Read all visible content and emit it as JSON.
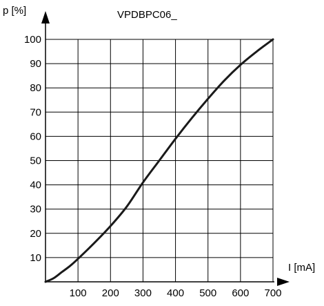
{
  "chart_data": {
    "type": "line",
    "title": "VPDBPC06_",
    "xlabel": "I [mA]",
    "ylabel": "p [%]",
    "xlim": [
      0,
      700
    ],
    "ylim": [
      0,
      100
    ],
    "xticks": [
      100,
      200,
      300,
      400,
      500,
      600,
      700
    ],
    "yticks": [
      10,
      20,
      30,
      40,
      50,
      60,
      70,
      80,
      90,
      100
    ],
    "grid": true,
    "colors": {
      "line": "#1a1a1a",
      "grid": "#000000",
      "axis": "#000000"
    },
    "series": [
      {
        "x": [
          0,
          25,
          50,
          75,
          100,
          150,
          200,
          250,
          300,
          350,
          400,
          450,
          500,
          550,
          600,
          650,
          700
        ],
        "y": [
          0,
          1.5,
          4,
          6.5,
          9.5,
          16,
          23,
          31,
          41,
          50,
          59,
          67.5,
          75.5,
          83,
          89.5,
          95,
          100
        ]
      }
    ]
  }
}
